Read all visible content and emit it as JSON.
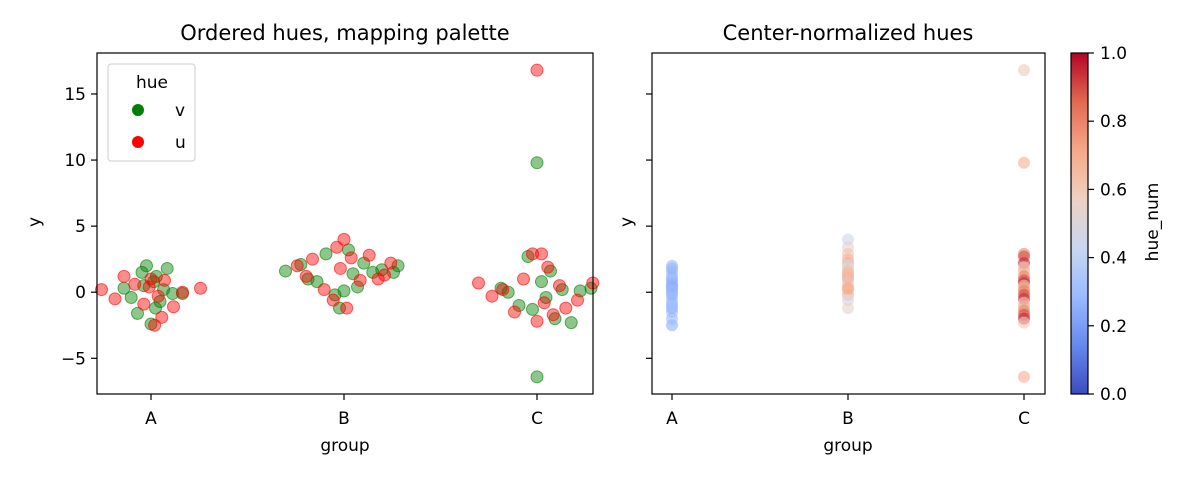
{
  "chart_data": [
    {
      "type": "scatter",
      "title": "Ordered hues, mapping palette",
      "xlabel": "group",
      "ylabel": "y",
      "categories": [
        "A",
        "B",
        "C"
      ],
      "ylim": [
        -7.7,
        18.1
      ],
      "yticks": [
        -5,
        0,
        5,
        10,
        15
      ],
      "yticklabels": [
        "−5",
        "0",
        "5",
        "10",
        "15"
      ],
      "legend": {
        "title": "hue",
        "placement": "top-left",
        "entries": [
          {
            "label": "v",
            "color": "#008000"
          },
          {
            "label": "u",
            "color": "#ff0000"
          }
        ]
      },
      "series": [
        {
          "hue": "v",
          "color": "#008000",
          "points": [
            [
              "A",
              -0.3,
              0.3
            ],
            [
              "A",
              -0.22,
              -0.4
            ],
            [
              "A",
              -0.15,
              -1.6
            ],
            [
              "A",
              -0.1,
              1.5
            ],
            [
              "A",
              -0.05,
              2.0
            ],
            [
              "A",
              0.0,
              -2.4
            ],
            [
              "A",
              0.03,
              0.8
            ],
            [
              "A",
              0.06,
              1.2
            ],
            [
              "A",
              0.1,
              -0.7
            ],
            [
              "A",
              0.14,
              0.2
            ],
            [
              "A",
              0.18,
              1.8
            ],
            [
              "A",
              0.24,
              -0.1
            ],
            [
              "A",
              0.35,
              -0.1
            ],
            [
              "A",
              -0.08,
              0.5
            ],
            [
              "A",
              0.05,
              -1.2
            ],
            [
              "B",
              -0.65,
              1.6
            ],
            [
              "B",
              -0.48,
              2.1
            ],
            [
              "B",
              -0.4,
              1.0
            ],
            [
              "B",
              -0.3,
              0.8
            ],
            [
              "B",
              -0.2,
              2.9
            ],
            [
              "B",
              -0.1,
              -0.2
            ],
            [
              "B",
              0.0,
              0.1
            ],
            [
              "B",
              0.05,
              3.2
            ],
            [
              "B",
              0.1,
              1.4
            ],
            [
              "B",
              0.15,
              0.4
            ],
            [
              "B",
              0.22,
              2.2
            ],
            [
              "B",
              0.32,
              1.5
            ],
            [
              "B",
              0.42,
              1.7
            ],
            [
              "B",
              0.55,
              1.5
            ],
            [
              "B",
              0.6,
              2.0
            ],
            [
              "B",
              -0.05,
              -1.2
            ],
            [
              "C",
              -0.4,
              0.3
            ],
            [
              "C",
              -0.32,
              0.0
            ],
            [
              "C",
              -0.2,
              -1.0
            ],
            [
              "C",
              -0.1,
              2.7
            ],
            [
              "C",
              -0.05,
              -1.3
            ],
            [
              "C",
              0.0,
              9.8
            ],
            [
              "C",
              0.0,
              -6.4
            ],
            [
              "C",
              0.05,
              0.8
            ],
            [
              "C",
              0.1,
              -0.4
            ],
            [
              "C",
              0.15,
              1.6
            ],
            [
              "C",
              0.2,
              -2.0
            ],
            [
              "C",
              0.28,
              0.2
            ],
            [
              "C",
              0.38,
              -2.3
            ],
            [
              "C",
              0.48,
              0.1
            ],
            [
              "C",
              0.6,
              0.3
            ]
          ]
        },
        {
          "hue": "u",
          "color": "#ff0000",
          "points": [
            [
              "A",
              -0.55,
              0.2
            ],
            [
              "A",
              -0.4,
              -0.5
            ],
            [
              "A",
              -0.3,
              1.2
            ],
            [
              "A",
              -0.18,
              0.6
            ],
            [
              "A",
              -0.08,
              -0.9
            ],
            [
              "A",
              0.0,
              1.0
            ],
            [
              "A",
              0.04,
              -2.5
            ],
            [
              "A",
              0.08,
              -0.3
            ],
            [
              "A",
              0.15,
              0.9
            ],
            [
              "A",
              0.25,
              -1.1
            ],
            [
              "A",
              0.35,
              0.0
            ],
            [
              "A",
              0.55,
              0.3
            ],
            [
              "A",
              -0.02,
              0.4
            ],
            [
              "A",
              0.12,
              -1.9
            ],
            [
              "B",
              -0.52,
              2.0
            ],
            [
              "B",
              -0.42,
              1.2
            ],
            [
              "B",
              -0.35,
              2.5
            ],
            [
              "B",
              -0.22,
              0.2
            ],
            [
              "B",
              -0.12,
              -0.6
            ],
            [
              "B",
              -0.04,
              1.8
            ],
            [
              "B",
              0.0,
              4.0
            ],
            [
              "B",
              0.03,
              -1.2
            ],
            [
              "B",
              0.08,
              2.6
            ],
            [
              "B",
              0.18,
              0.9
            ],
            [
              "B",
              0.28,
              2.8
            ],
            [
              "B",
              0.38,
              1.0
            ],
            [
              "B",
              0.45,
              1.3
            ],
            [
              "B",
              0.52,
              2.2
            ],
            [
              "B",
              -0.08,
              3.4
            ],
            [
              "C",
              -0.65,
              0.7
            ],
            [
              "C",
              -0.5,
              -0.3
            ],
            [
              "C",
              -0.38,
              0.2
            ],
            [
              "C",
              -0.25,
              -1.5
            ],
            [
              "C",
              -0.15,
              1.0
            ],
            [
              "C",
              -0.05,
              2.9
            ],
            [
              "C",
              0.0,
              16.8
            ],
            [
              "C",
              0.0,
              -2.2
            ],
            [
              "C",
              0.05,
              2.9
            ],
            [
              "C",
              0.08,
              -0.8
            ],
            [
              "C",
              0.12,
              1.9
            ],
            [
              "C",
              0.18,
              -1.7
            ],
            [
              "C",
              0.25,
              0.5
            ],
            [
              "C",
              0.32,
              -1.2
            ],
            [
              "C",
              0.45,
              -0.6
            ],
            [
              "C",
              0.62,
              0.7
            ]
          ]
        }
      ]
    },
    {
      "type": "scatter",
      "title": "Center-normalized hues",
      "xlabel": "group",
      "ylabel": "y",
      "categories": [
        "A",
        "B",
        "C"
      ],
      "ylim": [
        -7.7,
        18.1
      ],
      "colorbar": {
        "label": "hue_num",
        "cmap": [
          "#3b4cc0",
          "#6788ee",
          "#9abbff",
          "#c9d7f0",
          "#edd1c2",
          "#f7a889",
          "#e26952",
          "#b40426"
        ],
        "range": [
          0,
          1
        ],
        "ticks": [
          0.0,
          0.2,
          0.4,
          0.6,
          0.8,
          1.0
        ],
        "ticklabels": [
          "0.0",
          "0.2",
          "0.4",
          "0.6",
          "0.8",
          "1.0"
        ]
      },
      "series": [
        {
          "group": "A",
          "hue_num": [
            0.25,
            0.28,
            0.3
          ],
          "y": [
            -2.5,
            -2.0,
            -1.5,
            -1.2,
            -0.8,
            -0.5,
            -0.2,
            0.0,
            0.2,
            0.4,
            0.6,
            0.8,
            1.0,
            1.2,
            1.5,
            1.8,
            2.0,
            -1.0,
            0.5,
            0.1
          ]
        },
        {
          "group": "B",
          "hue_num": [
            0.45,
            0.55,
            0.62,
            0.68,
            0.7
          ],
          "y": [
            4.0,
            3.4,
            2.9,
            2.5,
            2.2,
            2.0,
            1.8,
            1.6,
            1.4,
            1.2,
            1.0,
            0.8,
            0.5,
            0.2,
            -0.2,
            -0.6,
            -1.2,
            1.5,
            1.1,
            0.3
          ]
        },
        {
          "group": "C",
          "hue_num": [
            0.6,
            0.7,
            0.8,
            0.9,
            0.95
          ],
          "y": [
            16.8,
            9.8,
            2.9,
            2.7,
            2.2,
            1.9,
            1.6,
            1.2,
            0.9,
            0.7,
            0.5,
            0.3,
            0.1,
            -0.2,
            -0.5,
            -0.8,
            -1.1,
            -1.4,
            -1.7,
            -2.0,
            -2.3,
            -6.4
          ]
        }
      ]
    }
  ]
}
